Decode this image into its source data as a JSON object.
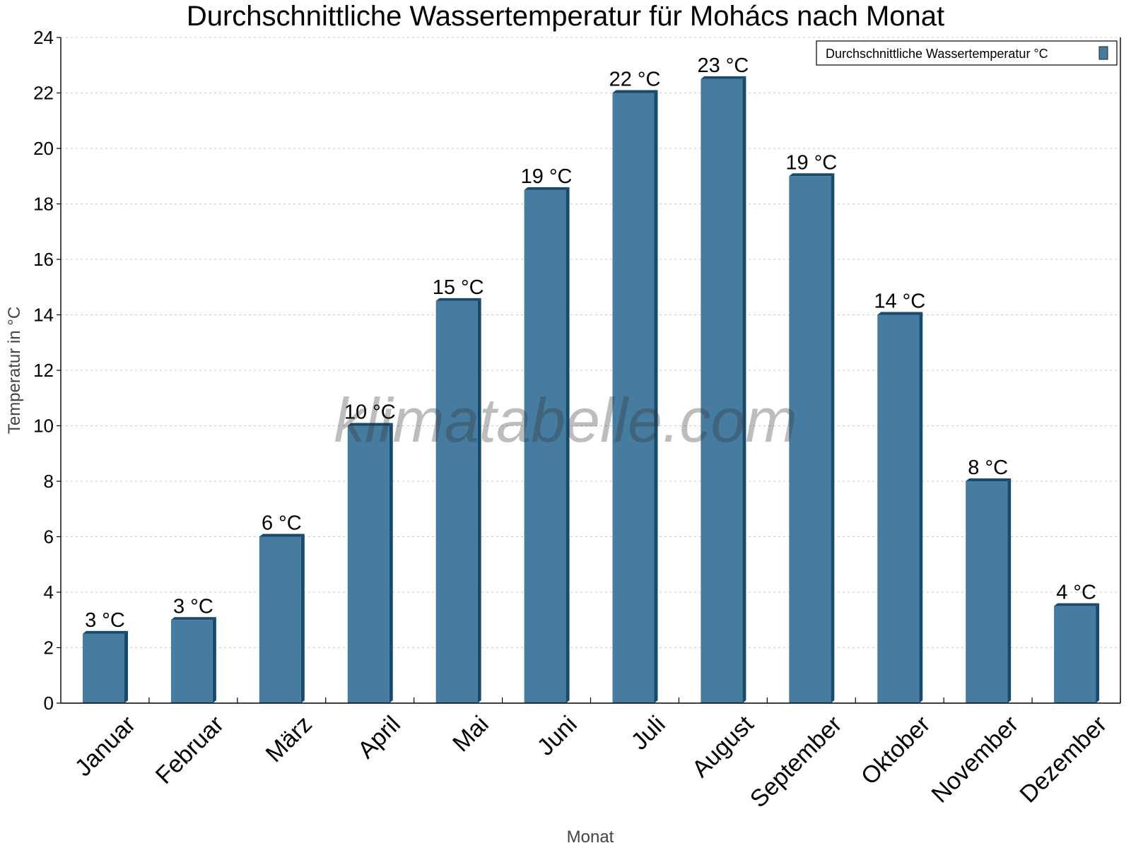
{
  "chart_data": {
    "type": "bar",
    "title": "Durchschnittliche Wassertemperatur für Mohács nach Monat",
    "xlabel": "Monat",
    "ylabel": "Temperatur in °C",
    "categories": [
      "Januar",
      "Februar",
      "März",
      "April",
      "Mai",
      "Juni",
      "Juli",
      "August",
      "September",
      "Oktober",
      "November",
      "Dezember"
    ],
    "series": [
      {
        "name": "Durchschnittliche Wassertemperatur °C",
        "values": [
          2.5,
          3,
          6,
          10,
          14.5,
          18.5,
          22,
          22.5,
          19,
          14,
          8,
          3.5
        ],
        "labels": [
          "3 °C",
          "3 °C",
          "6 °C",
          "10 °C",
          "15 °C",
          "19 °C",
          "22 °C",
          "23 °C",
          "19 °C",
          "14 °C",
          "8 °C",
          "4 °C"
        ],
        "color": "#467c9f",
        "side_color": "#174b6d"
      }
    ],
    "ylim": [
      0,
      24
    ],
    "yticks": [
      0,
      2,
      4,
      6,
      8,
      10,
      12,
      14,
      16,
      18,
      20,
      22,
      24
    ],
    "grid": true,
    "legend_position": "top-right",
    "watermark": "klimatabelle.com"
  }
}
